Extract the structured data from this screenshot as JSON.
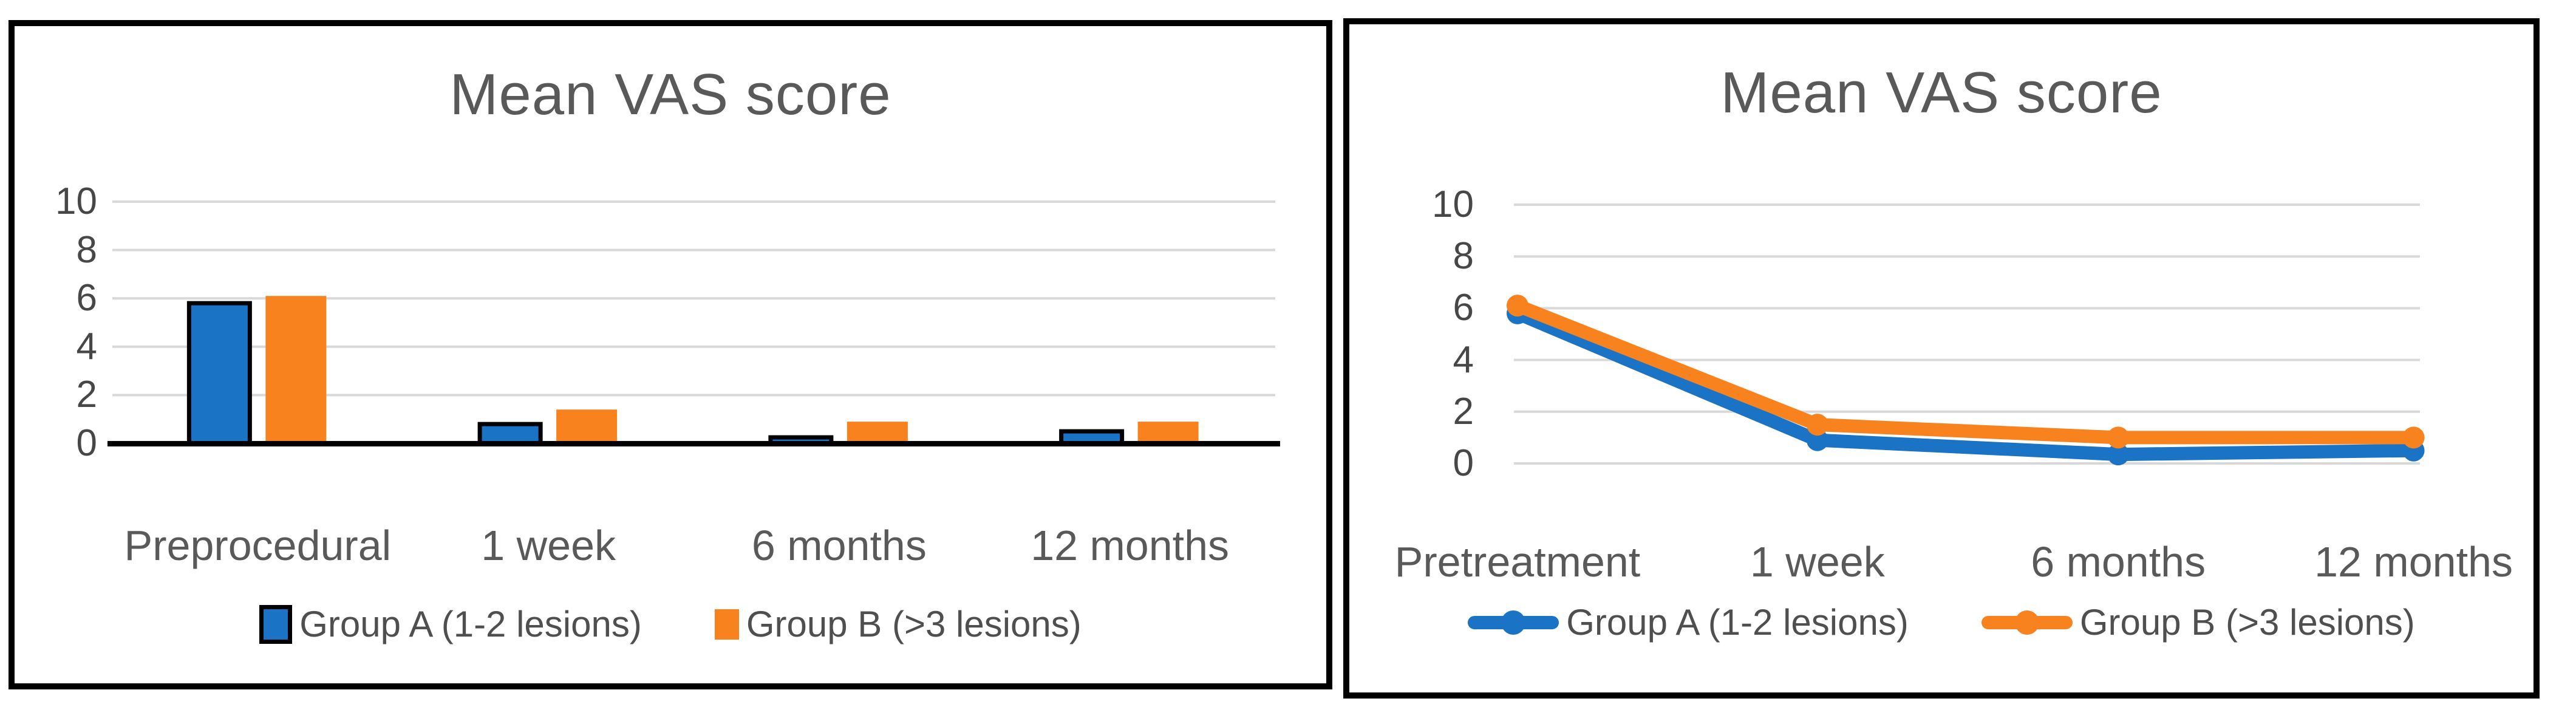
{
  "page": {
    "background": "#ffffff"
  },
  "styles": {
    "grid_color": "#d9d9d9",
    "axis_color": "#000000",
    "title_color": "#595959",
    "tick_color": "#474747",
    "label_color": "#595959",
    "series_blue": "#1b73c6",
    "series_orange": "#f7821e",
    "bar_outline": "#000000"
  },
  "chart_data": [
    {
      "type": "bar",
      "title": "Mean VAS score",
      "categories": [
        "Preprocedural",
        "1 week",
        "6 months",
        "12 months"
      ],
      "series": [
        {
          "name": "Group A (1-2 lesions)",
          "color": "#1b73c6",
          "outline": "#000000",
          "values": [
            5.8,
            0.8,
            0.25,
            0.5
          ]
        },
        {
          "name": "Group B (>3 lesions)",
          "color": "#f7821e",
          "values": [
            6.1,
            1.4,
            0.9,
            0.9
          ]
        }
      ],
      "y_ticks": [
        10,
        8,
        6,
        4,
        2,
        0
      ],
      "ylim": [
        0,
        10
      ],
      "grid": true,
      "legend_position": "bottom"
    },
    {
      "type": "line",
      "title": "Mean VAS score",
      "categories": [
        "Pretreatment",
        "1 week",
        "6 months",
        "12 months"
      ],
      "marker": "circle",
      "series": [
        {
          "name": "Group A (1-2 lesions)",
          "color": "#1b73c6",
          "values": [
            5.8,
            0.9,
            0.35,
            0.5
          ]
        },
        {
          "name": "Group B (>3 lesions)",
          "color": "#f7821e",
          "values": [
            6.1,
            1.5,
            1.0,
            1.0
          ]
        }
      ],
      "y_ticks": [
        10,
        8,
        6,
        4,
        2,
        0
      ],
      "ylim": [
        0,
        10
      ],
      "grid": true,
      "legend_position": "bottom"
    }
  ]
}
